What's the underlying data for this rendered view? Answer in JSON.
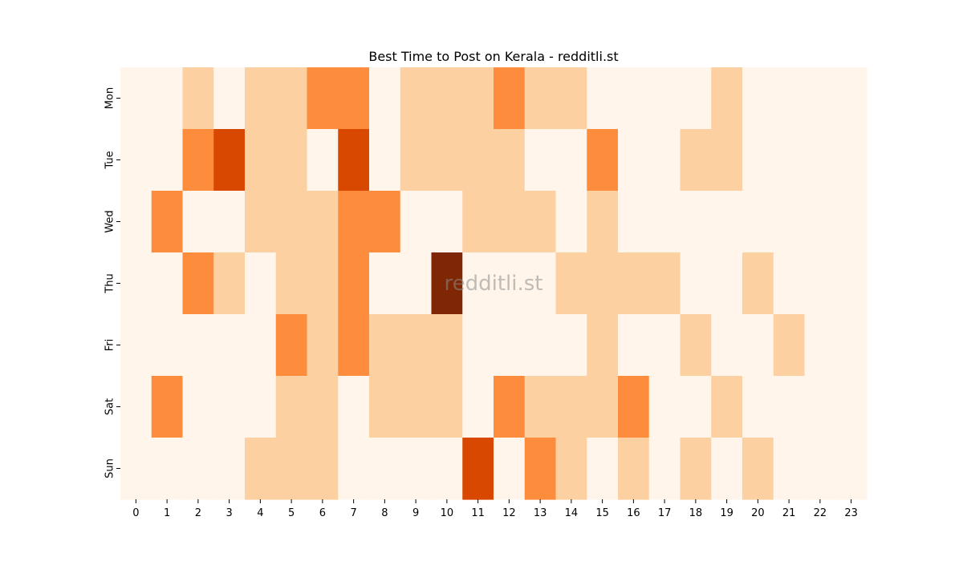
{
  "chart_data": {
    "type": "heatmap",
    "title": "Best Time to Post on Kerala - redditli.st",
    "watermark": "redditli.st",
    "xlabel": "",
    "ylabel": "",
    "x_categories": [
      "0",
      "1",
      "2",
      "3",
      "4",
      "5",
      "6",
      "7",
      "8",
      "9",
      "10",
      "11",
      "12",
      "13",
      "14",
      "15",
      "16",
      "17",
      "18",
      "19",
      "20",
      "21",
      "22",
      "23"
    ],
    "y_categories": [
      "Mon",
      "Tue",
      "Wed",
      "Thu",
      "Fri",
      "Sat",
      "Sun"
    ],
    "colormap": "Oranges",
    "color_scale": [
      "#fff5eb",
      "#fdd0a2",
      "#fd8d3c",
      "#d94801",
      "#7f2704"
    ],
    "value_range": [
      0,
      4
    ],
    "values": [
      [
        0,
        0,
        1,
        0,
        1,
        1,
        2,
        2,
        0,
        1,
        1,
        1,
        2,
        1,
        1,
        0,
        0,
        0,
        0,
        1,
        0,
        0,
        0,
        0
      ],
      [
        0,
        0,
        2,
        3,
        1,
        1,
        0,
        3,
        0,
        1,
        1,
        1,
        1,
        0,
        0,
        2,
        0,
        0,
        1,
        1,
        0,
        0,
        0,
        0
      ],
      [
        0,
        2,
        0,
        0,
        1,
        1,
        1,
        2,
        2,
        0,
        0,
        1,
        1,
        1,
        0,
        1,
        0,
        0,
        0,
        0,
        0,
        0,
        0,
        0
      ],
      [
        0,
        0,
        2,
        1,
        0,
        1,
        1,
        2,
        0,
        0,
        4,
        0,
        0,
        0,
        1,
        1,
        1,
        1,
        0,
        0,
        1,
        0,
        0,
        0
      ],
      [
        0,
        0,
        0,
        0,
        0,
        2,
        1,
        2,
        1,
        1,
        1,
        0,
        0,
        0,
        0,
        1,
        0,
        0,
        1,
        0,
        0,
        1,
        0,
        0
      ],
      [
        0,
        2,
        0,
        0,
        0,
        1,
        1,
        0,
        1,
        1,
        1,
        0,
        2,
        1,
        1,
        1,
        2,
        0,
        0,
        1,
        0,
        0,
        0,
        0
      ],
      [
        0,
        0,
        0,
        0,
        1,
        1,
        1,
        0,
        0,
        0,
        0,
        3,
        0,
        2,
        1,
        0,
        1,
        0,
        1,
        0,
        1,
        0,
        0,
        0
      ]
    ],
    "grid": false,
    "legend": "none"
  }
}
